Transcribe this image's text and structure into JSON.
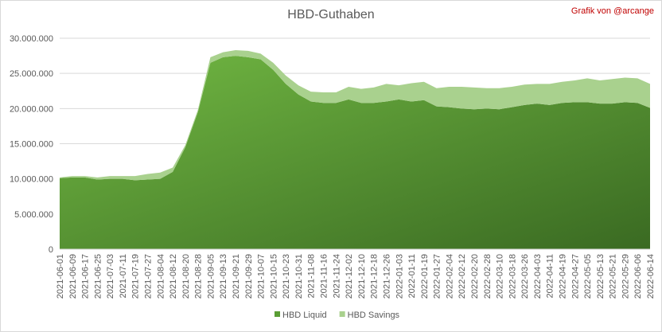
{
  "chart_data": {
    "type": "stacked-area",
    "title": "HBD-Guthaben",
    "credit": "Grafik von @arcange",
    "categories": [
      "2021-06-01",
      "2021-06-09",
      "2021-06-17",
      "2021-06-25",
      "2021-07-03",
      "2021-07-11",
      "2021-07-19",
      "2021-07-27",
      "2021-08-04",
      "2021-08-12",
      "2021-08-20",
      "2021-08-28",
      "2021-09-05",
      "2021-09-13",
      "2021-09-21",
      "2021-09-29",
      "2021-10-07",
      "2021-10-15",
      "2021-10-23",
      "2021-10-31",
      "2021-11-08",
      "2021-11-16",
      "2021-11-24",
      "2021-12-02",
      "2021-12-10",
      "2021-12-18",
      "2021-12-26",
      "2022-01-03",
      "2022-01-11",
      "2022-01-19",
      "2022-01-27",
      "2022-02-04",
      "2022-02-12",
      "2022-02-20",
      "2022-02-28",
      "2022-03-10",
      "2022-03-18",
      "2022-03-26",
      "2022-04-03",
      "2022-04-11",
      "2022-04-19",
      "2022-04-27",
      "2022-05-05",
      "2022-05-13",
      "2022-05-21",
      "2022-05-29",
      "2022-06-06",
      "2022-06-14"
    ],
    "series": [
      {
        "name": "HBD Liquid",
        "color": "#5a9e35",
        "values": [
          10100000,
          10200000,
          10200000,
          9900000,
          10000000,
          10000000,
          9800000,
          9900000,
          10000000,
          11000000,
          14500000,
          19500000,
          26500000,
          27300000,
          27500000,
          27300000,
          27000000,
          25500000,
          23500000,
          22000000,
          21000000,
          20800000,
          20800000,
          21300000,
          20800000,
          20800000,
          21000000,
          21300000,
          21000000,
          21200000,
          20300000,
          20200000,
          20000000,
          19900000,
          20000000,
          19900000,
          20200000,
          20500000,
          20700000,
          20500000,
          20800000,
          20900000,
          20900000,
          20700000,
          20700000,
          20900000,
          20800000,
          20100000
        ]
      },
      {
        "name": "HBD Savings",
        "color": "#a9d18e",
        "values": [
          100000,
          200000,
          200000,
          300000,
          400000,
          400000,
          600000,
          800000,
          900000,
          600000,
          300000,
          300000,
          800000,
          700000,
          800000,
          900000,
          800000,
          1000000,
          1200000,
          1300000,
          1400000,
          1500000,
          1500000,
          1800000,
          2000000,
          2200000,
          2500000,
          2000000,
          2600000,
          2600000,
          2600000,
          2900000,
          3100000,
          3100000,
          2900000,
          3000000,
          2900000,
          2900000,
          2800000,
          3000000,
          3000000,
          3100000,
          3400000,
          3300000,
          3500000,
          3500000,
          3500000,
          3400000
        ]
      }
    ],
    "ylim": [
      0,
      30000000
    ],
    "yticks": [
      {
        "value": 0,
        "label": "0"
      },
      {
        "value": 5000000,
        "label": "5.000.000"
      },
      {
        "value": 10000000,
        "label": "10.000.000"
      },
      {
        "value": 15000000,
        "label": "15.000.000"
      },
      {
        "value": 20000000,
        "label": "20.000.000"
      },
      {
        "value": 25000000,
        "label": "25.000.000"
      },
      {
        "value": 30000000,
        "label": "30.000.000"
      }
    ],
    "grid": true,
    "legend": "bottom"
  }
}
